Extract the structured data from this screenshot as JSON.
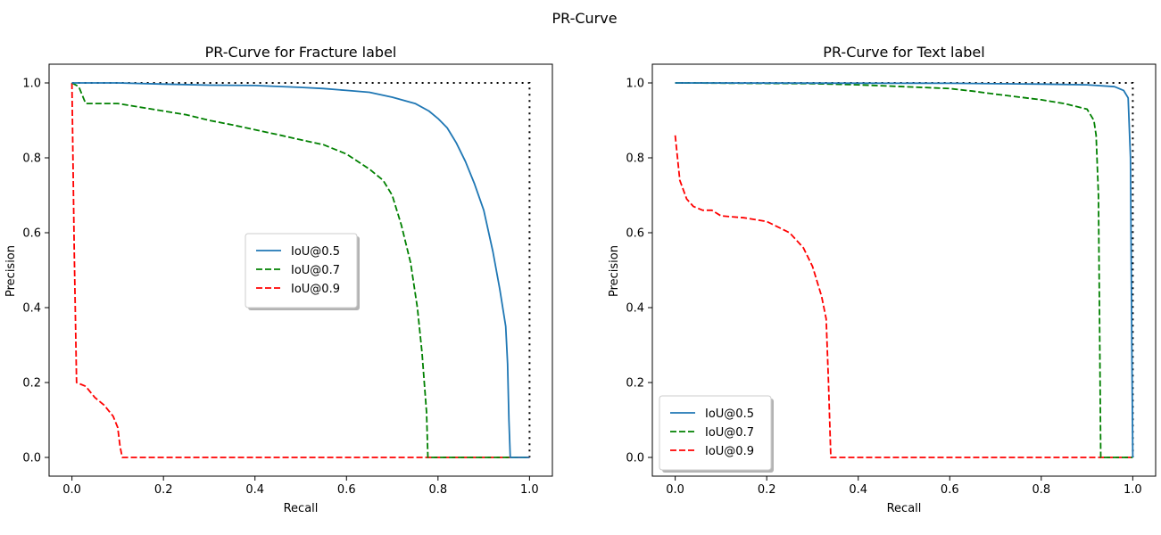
{
  "figure": {
    "suptitle": "PR-Curve"
  },
  "colors": {
    "iou50": "#1f77b4",
    "iou70": "#008000",
    "iou90": "#ff0000",
    "reference": "#000000"
  },
  "chart_data": [
    {
      "type": "line",
      "title": "PR-Curve for Fracture label",
      "xlabel": "Recall",
      "ylabel": "Precision",
      "xlim": [
        -0.05,
        1.05
      ],
      "ylim": [
        -0.05,
        1.05
      ],
      "xticks": [
        "0.0",
        "0.2",
        "0.4",
        "0.6",
        "0.8",
        "1.0"
      ],
      "yticks": [
        "0.0",
        "0.2",
        "0.4",
        "0.6",
        "0.8",
        "1.0"
      ],
      "grid": false,
      "legend_position": "center",
      "reference": {
        "style": "dotted",
        "points": [
          [
            0,
            1
          ],
          [
            1,
            1
          ],
          [
            1,
            0
          ]
        ]
      },
      "series": [
        {
          "name": "IoU@0.5",
          "style": "solid",
          "points": [
            [
              0,
              1
            ],
            [
              0.1,
              1
            ],
            [
              0.2,
              0.997
            ],
            [
              0.3,
              0.994
            ],
            [
              0.4,
              0.993
            ],
            [
              0.5,
              0.988
            ],
            [
              0.55,
              0.985
            ],
            [
              0.6,
              0.98
            ],
            [
              0.65,
              0.975
            ],
            [
              0.7,
              0.962
            ],
            [
              0.75,
              0.945
            ],
            [
              0.78,
              0.925
            ],
            [
              0.8,
              0.905
            ],
            [
              0.82,
              0.88
            ],
            [
              0.84,
              0.84
            ],
            [
              0.86,
              0.79
            ],
            [
              0.88,
              0.73
            ],
            [
              0.9,
              0.66
            ],
            [
              0.92,
              0.55
            ],
            [
              0.935,
              0.45
            ],
            [
              0.948,
              0.35
            ],
            [
              0.952,
              0.25
            ],
            [
              0.955,
              0.1
            ],
            [
              0.958,
              0
            ],
            [
              1,
              0
            ]
          ]
        },
        {
          "name": "IoU@0.7",
          "style": "dashed",
          "points": [
            [
              0,
              1
            ],
            [
              0.015,
              0.99
            ],
            [
              0.03,
              0.945
            ],
            [
              0.1,
              0.945
            ],
            [
              0.15,
              0.935
            ],
            [
              0.2,
              0.925
            ],
            [
              0.25,
              0.915
            ],
            [
              0.3,
              0.9
            ],
            [
              0.35,
              0.888
            ],
            [
              0.4,
              0.875
            ],
            [
              0.45,
              0.862
            ],
            [
              0.5,
              0.848
            ],
            [
              0.55,
              0.835
            ],
            [
              0.6,
              0.81
            ],
            [
              0.65,
              0.77
            ],
            [
              0.68,
              0.74
            ],
            [
              0.7,
              0.7
            ],
            [
              0.72,
              0.62
            ],
            [
              0.74,
              0.52
            ],
            [
              0.755,
              0.4
            ],
            [
              0.765,
              0.28
            ],
            [
              0.775,
              0.12
            ],
            [
              0.778,
              0
            ],
            [
              1,
              0
            ]
          ]
        },
        {
          "name": "IoU@0.9",
          "style": "dashed",
          "points": [
            [
              0,
              1
            ],
            [
              0.005,
              0.55
            ],
            [
              0.01,
              0.2
            ],
            [
              0.03,
              0.19
            ],
            [
              0.05,
              0.16
            ],
            [
              0.07,
              0.14
            ],
            [
              0.09,
              0.11
            ],
            [
              0.1,
              0.08
            ],
            [
              0.105,
              0.03
            ],
            [
              0.11,
              0
            ],
            [
              1,
              0
            ]
          ]
        }
      ]
    },
    {
      "type": "line",
      "title": "PR-Curve for Text label",
      "xlabel": "Recall",
      "ylabel": "Precision",
      "xlim": [
        -0.05,
        1.05
      ],
      "ylim": [
        -0.05,
        1.05
      ],
      "xticks": [
        "0.0",
        "0.2",
        "0.4",
        "0.6",
        "0.8",
        "1.0"
      ],
      "yticks": [
        "0.0",
        "0.2",
        "0.4",
        "0.6",
        "0.8",
        "1.0"
      ],
      "grid": false,
      "legend_position": "lower left",
      "reference": {
        "style": "dotted",
        "points": [
          [
            0,
            1
          ],
          [
            1,
            1
          ],
          [
            1,
            0
          ]
        ]
      },
      "series": [
        {
          "name": "IoU@0.5",
          "style": "solid",
          "points": [
            [
              0,
              1
            ],
            [
              0.6,
              0.999
            ],
            [
              0.8,
              0.997
            ],
            [
              0.9,
              0.995
            ],
            [
              0.96,
              0.99
            ],
            [
              0.98,
              0.98
            ],
            [
              0.99,
              0.96
            ],
            [
              0.995,
              0.8
            ],
            [
              0.998,
              0.3
            ],
            [
              1,
              0
            ]
          ]
        },
        {
          "name": "IoU@0.7",
          "style": "dashed",
          "points": [
            [
              0,
              1
            ],
            [
              0.3,
              0.998
            ],
            [
              0.4,
              0.995
            ],
            [
              0.5,
              0.99
            ],
            [
              0.6,
              0.985
            ],
            [
              0.65,
              0.978
            ],
            [
              0.7,
              0.97
            ],
            [
              0.8,
              0.955
            ],
            [
              0.85,
              0.945
            ],
            [
              0.9,
              0.93
            ],
            [
              0.915,
              0.9
            ],
            [
              0.92,
              0.86
            ],
            [
              0.925,
              0.7
            ],
            [
              0.928,
              0.3
            ],
            [
              0.93,
              0
            ],
            [
              1,
              0
            ]
          ]
        },
        {
          "name": "IoU@0.9",
          "style": "dashed",
          "points": [
            [
              0,
              0.86
            ],
            [
              0.005,
              0.8
            ],
            [
              0.01,
              0.74
            ],
            [
              0.025,
              0.69
            ],
            [
              0.04,
              0.67
            ],
            [
              0.06,
              0.66
            ],
            [
              0.08,
              0.66
            ],
            [
              0.1,
              0.645
            ],
            [
              0.15,
              0.64
            ],
            [
              0.2,
              0.63
            ],
            [
              0.25,
              0.6
            ],
            [
              0.28,
              0.56
            ],
            [
              0.3,
              0.51
            ],
            [
              0.31,
              0.47
            ],
            [
              0.32,
              0.43
            ],
            [
              0.33,
              0.37
            ],
            [
              0.335,
              0.2
            ],
            [
              0.34,
              0
            ],
            [
              1,
              0
            ]
          ]
        }
      ]
    }
  ]
}
